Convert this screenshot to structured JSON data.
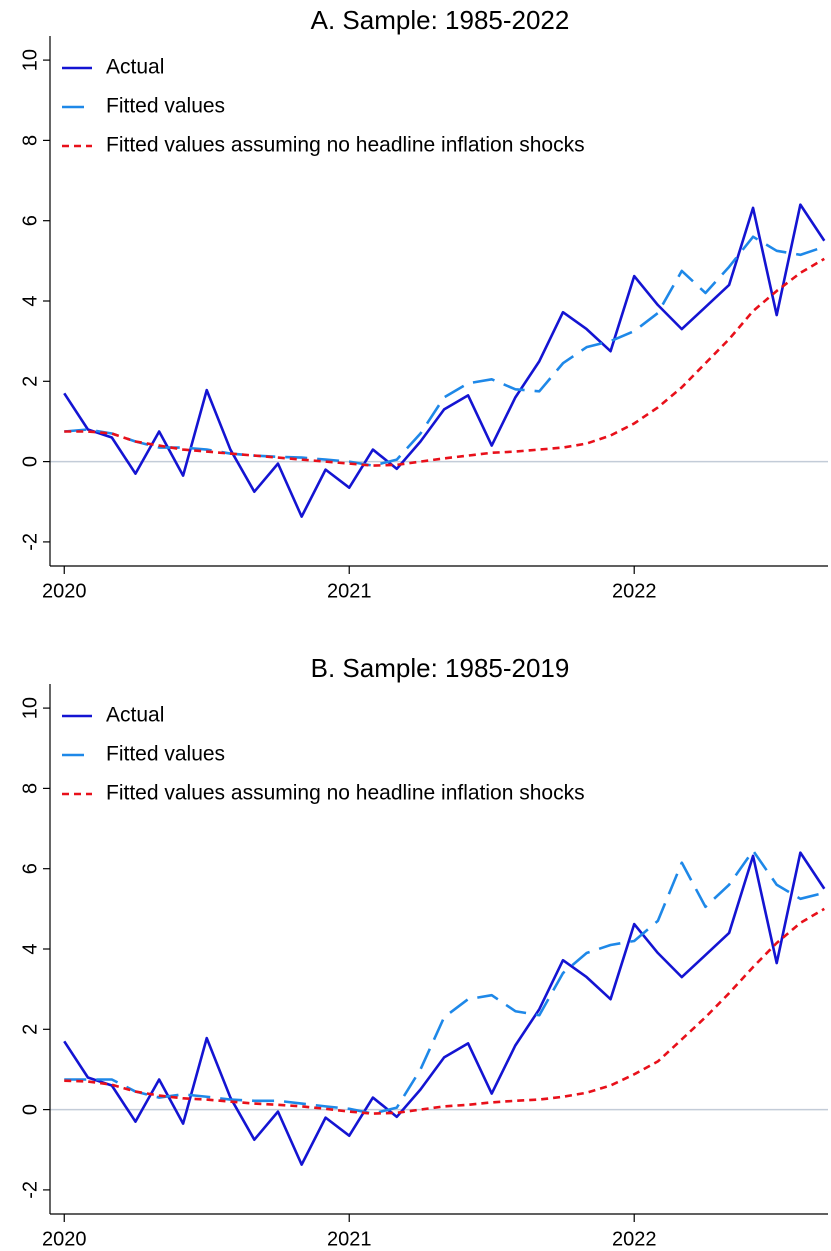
{
  "chart_data": [
    {
      "type": "line",
      "title": "A. Sample: 1985-2022",
      "x": [
        2020,
        2020.083,
        2020.167,
        2020.25,
        2020.333,
        2020.417,
        2020.5,
        2020.583,
        2020.667,
        2020.75,
        2020.833,
        2020.917,
        2021,
        2021.083,
        2021.167,
        2021.25,
        2021.333,
        2021.417,
        2021.5,
        2021.583,
        2021.667,
        2021.75,
        2021.833,
        2021.917,
        2022,
        2022.083,
        2022.167,
        2022.25,
        2022.333,
        2022.417,
        2022.5,
        2022.583,
        2022.667
      ],
      "series": [
        {
          "name": "Actual",
          "color": "#1414d2",
          "dash": "solid",
          "values": [
            1.7,
            0.8,
            0.6,
            -0.3,
            0.75,
            -0.35,
            1.78,
            0.3,
            -0.75,
            -0.05,
            -1.37,
            -0.2,
            -0.65,
            0.3,
            -0.18,
            0.5,
            1.3,
            1.65,
            0.4,
            1.6,
            2.5,
            3.72,
            3.3,
            2.75,
            4.62,
            3.9,
            3.3,
            3.85,
            4.4,
            6.32,
            3.65,
            6.4,
            5.5
          ]
        },
        {
          "name": "Fitted values",
          "color": "#1e88e8",
          "dash": "long",
          "values": [
            0.75,
            0.8,
            0.7,
            0.5,
            0.35,
            0.35,
            0.3,
            0.2,
            0.15,
            0.12,
            0.1,
            0.05,
            0.0,
            -0.1,
            0.05,
            0.7,
            1.6,
            1.95,
            2.05,
            1.8,
            1.75,
            2.45,
            2.85,
            3.0,
            3.25,
            3.7,
            4.75,
            4.2,
            4.85,
            5.6,
            5.25,
            5.15,
            5.35
          ]
        },
        {
          "name": "Fitted values assuming no headline inflation shocks",
          "color": "#e8101a",
          "dash": "short",
          "values": [
            0.75,
            0.75,
            0.7,
            0.5,
            0.4,
            0.3,
            0.25,
            0.2,
            0.15,
            0.1,
            0.05,
            0.0,
            -0.05,
            -0.1,
            -0.08,
            0.0,
            0.08,
            0.15,
            0.22,
            0.25,
            0.3,
            0.35,
            0.45,
            0.65,
            0.95,
            1.35,
            1.85,
            2.45,
            3.05,
            3.75,
            4.25,
            4.7,
            5.05
          ]
        }
      ],
      "xlim": [
        2019.95,
        2022.68
      ],
      "xticks": [
        2020,
        2021,
        2022
      ],
      "ylim": [
        -2.6,
        10.6
      ],
      "yticks": [
        -2,
        0,
        2,
        4,
        6,
        8,
        10
      ],
      "reference_line": 0,
      "legend": "top-left"
    },
    {
      "type": "line",
      "title": "B. Sample: 1985-2019",
      "x": [
        2020,
        2020.083,
        2020.167,
        2020.25,
        2020.333,
        2020.417,
        2020.5,
        2020.583,
        2020.667,
        2020.75,
        2020.833,
        2020.917,
        2021,
        2021.083,
        2021.167,
        2021.25,
        2021.333,
        2021.417,
        2021.5,
        2021.583,
        2021.667,
        2021.75,
        2021.833,
        2021.917,
        2022,
        2022.083,
        2022.167,
        2022.25,
        2022.333,
        2022.417,
        2022.5,
        2022.583,
        2022.667
      ],
      "series": [
        {
          "name": "Actual",
          "color": "#1414d2",
          "dash": "solid",
          "values": [
            1.7,
            0.8,
            0.6,
            -0.3,
            0.75,
            -0.35,
            1.78,
            0.3,
            -0.75,
            -0.05,
            -1.37,
            -0.2,
            -0.65,
            0.3,
            -0.18,
            0.5,
            1.3,
            1.65,
            0.4,
            1.6,
            2.5,
            3.72,
            3.3,
            2.75,
            4.62,
            3.9,
            3.3,
            3.85,
            4.4,
            6.32,
            3.65,
            6.4,
            5.5
          ]
        },
        {
          "name": "Fitted values",
          "color": "#1e88e8",
          "dash": "long",
          "values": [
            0.75,
            0.75,
            0.75,
            0.45,
            0.3,
            0.38,
            0.32,
            0.25,
            0.22,
            0.22,
            0.15,
            0.08,
            0.02,
            -0.1,
            0.05,
            1.0,
            2.3,
            2.75,
            2.85,
            2.45,
            2.35,
            3.4,
            3.9,
            4.1,
            4.2,
            4.7,
            6.15,
            5.05,
            5.6,
            6.45,
            5.6,
            5.25,
            5.4
          ]
        },
        {
          "name": "Fitted values assuming no headline inflation shocks",
          "color": "#e8101a",
          "dash": "short",
          "values": [
            0.72,
            0.7,
            0.62,
            0.45,
            0.35,
            0.28,
            0.25,
            0.2,
            0.15,
            0.12,
            0.08,
            0.02,
            -0.05,
            -0.1,
            -0.08,
            0.0,
            0.08,
            0.12,
            0.18,
            0.22,
            0.25,
            0.32,
            0.42,
            0.6,
            0.88,
            1.2,
            1.75,
            2.3,
            2.9,
            3.55,
            4.15,
            4.65,
            5.0
          ]
        }
      ],
      "xlim": [
        2019.95,
        2022.68
      ],
      "xticks": [
        2020,
        2021,
        2022
      ],
      "ylim": [
        -2.6,
        10.6
      ],
      "yticks": [
        -2,
        0,
        2,
        4,
        6,
        8,
        10
      ],
      "reference_line": 0,
      "legend": "top-left"
    }
  ]
}
